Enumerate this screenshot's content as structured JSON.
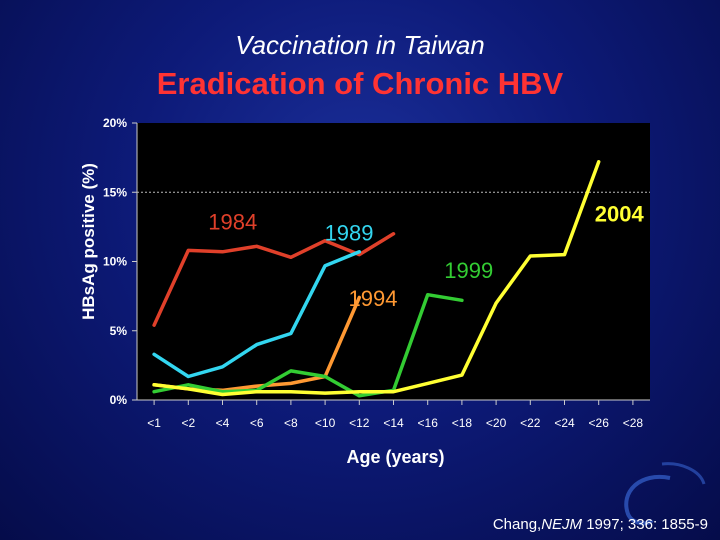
{
  "header": {
    "subtitle": "Vaccination in Taiwan",
    "title": "Eradication of Chronic HBV"
  },
  "citation": {
    "author": "Chang,",
    "journal": "NEJM",
    "ref": " 1997; 336: 1855-9"
  },
  "colors": {
    "background": "#0d1a78",
    "title": "#ff3333",
    "series_1984": "#e0402a",
    "series_1989": "#33d6f0",
    "series_1994": "#ff9933",
    "series_1999": "#33cc33",
    "series_2004": "#ffff33"
  },
  "chart_data": {
    "type": "line",
    "xlabel": "Age (years)",
    "ylabel": "HBsAg positive (%)",
    "ylim": [
      0,
      20
    ],
    "yticks": [
      "0%",
      "5%",
      "10%",
      "15%",
      "20%"
    ],
    "reference_line": 15,
    "grid": false,
    "categories": [
      "<1",
      "<2",
      "<4",
      "<6",
      "<8",
      "<10",
      "<12",
      "<14",
      "<16",
      "<18",
      "<20",
      "<22",
      "<24",
      "<26",
      "<28"
    ],
    "series": [
      {
        "name": "1984",
        "color": "#e0402a",
        "x": [
          0,
          1,
          2,
          3,
          4,
          5,
          6,
          7
        ],
        "y": [
          5.4,
          10.8,
          10.7,
          11.1,
          10.3,
          11.5,
          10.5,
          12.0
        ]
      },
      {
        "name": "1989",
        "color": "#33d6f0",
        "x": [
          0,
          1,
          2,
          3,
          4,
          5,
          6
        ],
        "y": [
          3.3,
          1.7,
          2.4,
          4.0,
          4.8,
          9.7,
          10.7
        ]
      },
      {
        "name": "1994",
        "color": "#ff9933",
        "x": [
          0,
          1,
          2,
          3,
          4,
          5,
          6
        ],
        "y": [
          1.1,
          0.8,
          0.7,
          1.0,
          1.2,
          1.7,
          7.4
        ]
      },
      {
        "name": "1999",
        "color": "#33cc33",
        "x": [
          0,
          1,
          2,
          3,
          4,
          5,
          6,
          7,
          8,
          9
        ],
        "y": [
          0.6,
          1.1,
          0.6,
          0.7,
          2.1,
          1.7,
          0.3,
          0.7,
          7.6,
          7.2
        ]
      },
      {
        "name": "2004",
        "color": "#ffff33",
        "x": [
          0,
          1,
          2,
          3,
          4,
          5,
          6,
          7,
          8,
          9,
          10,
          11,
          12,
          13
        ],
        "y": [
          1.1,
          0.8,
          0.4,
          0.6,
          0.6,
          0.5,
          0.6,
          0.6,
          1.2,
          1.8,
          7.0,
          10.4,
          10.5,
          17.2
        ]
      }
    ],
    "annotations": [
      {
        "text": "1984",
        "color": "#e0402a",
        "x": 2.3,
        "y": 12.3
      },
      {
        "text": "1989",
        "color": "#33d6f0",
        "x": 5.7,
        "y": 11.5
      },
      {
        "text": "1994",
        "color": "#ff9933",
        "x": 6.4,
        "y": 6.8
      },
      {
        "text": "1999",
        "color": "#33cc33",
        "x": 9.2,
        "y": 8.8
      },
      {
        "text": "2004",
        "color": "#ffff33",
        "x": 13.6,
        "y": 12.9
      }
    ]
  }
}
